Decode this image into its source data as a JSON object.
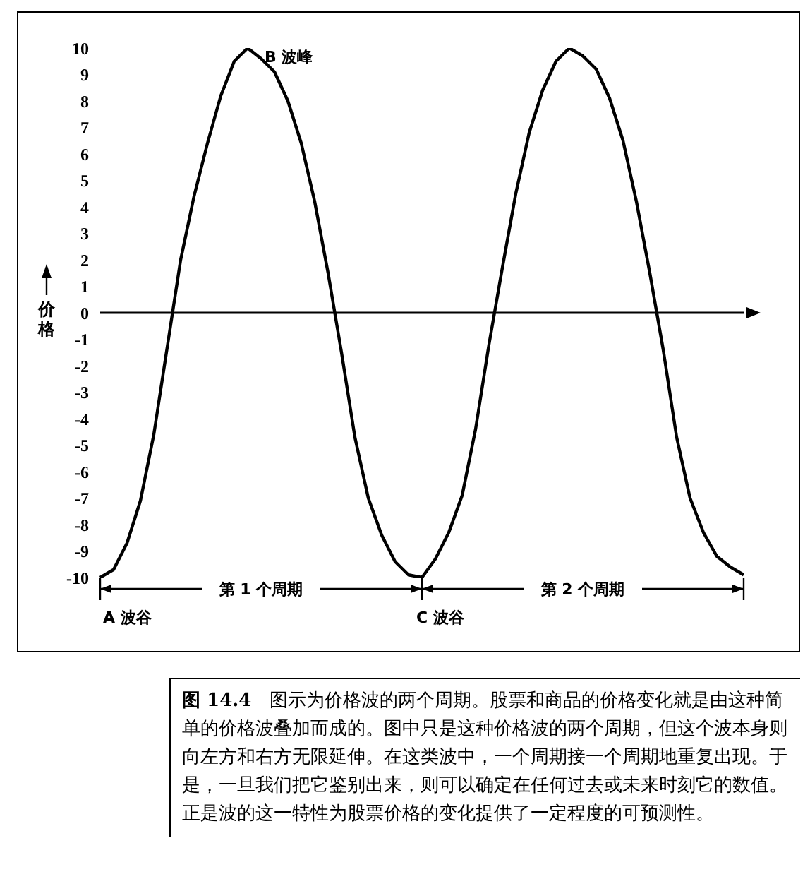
{
  "chart_data": {
    "type": "line",
    "title": "图 14.4",
    "ylabel": "价格",
    "categories": [
      null,
      null,
      null,
      null,
      null,
      null,
      null,
      null,
      null,
      null,
      null,
      null,
      null,
      null,
      null,
      null,
      null,
      null,
      null,
      null,
      null,
      null,
      null,
      null,
      null,
      null,
      null,
      null,
      null,
      null,
      null,
      null,
      null,
      null,
      null,
      null,
      null,
      null,
      null,
      null,
      null,
      null,
      null,
      null,
      null,
      null,
      null,
      null,
      null
    ],
    "series": [
      {
        "color": "#000000",
        "values": [
          -10,
          -9.7,
          -8.7,
          -7.1,
          -4.6,
          -1.3,
          2.0,
          4.4,
          6.4,
          8.2,
          9.5,
          10,
          9.6,
          9.1,
          8.0,
          6.4,
          4.2,
          1.5,
          -1.5,
          -4.7,
          -7.0,
          -8.4,
          -9.4,
          -9.9,
          -10,
          -9.3,
          -8.3,
          -6.9,
          -4.4,
          -1.2,
          1.7,
          4.5,
          6.8,
          8.4,
          9.5,
          10,
          9.7,
          9.2,
          8.1,
          6.5,
          4.2,
          1.5,
          -1.4,
          -4.7,
          -7.0,
          -8.3,
          -9.2,
          -9.6,
          -9.9
        ]
      }
    ],
    "ylim": [
      -10,
      10
    ],
    "yticks": [
      -10,
      -9,
      -8,
      -7,
      -6,
      -5,
      -4,
      -3,
      -2,
      -1,
      0,
      1,
      2,
      3,
      4,
      5,
      6,
      7,
      8,
      9,
      10
    ],
    "ref_lines": [
      {
        "axis": "y",
        "value": 0,
        "color": "#000000"
      }
    ],
    "tick_labels": "y",
    "marker": "none",
    "line_style": "solid",
    "grid": false,
    "legend": false,
    "annotations": [
      "A 波谷",
      "B 波峰",
      "C 波谷",
      "第 1 个周期",
      "第 2 个周期",
      "图示为价格波的两个周期。股票和商品的价格变化就是由这种简单的价格波叠加而成的。图中只是这种价格波的两个周期，但这个波本身则向左方和右方无限延伸。在这类波中，一个周期接一个周期地重复出现。于是，一旦我们把它鉴别出来，则可以确定在任何过去或未来时刻它的数值。正是波的这一特性为股票价格的变化提供了一定程度的可预测性。"
    ]
  }
}
